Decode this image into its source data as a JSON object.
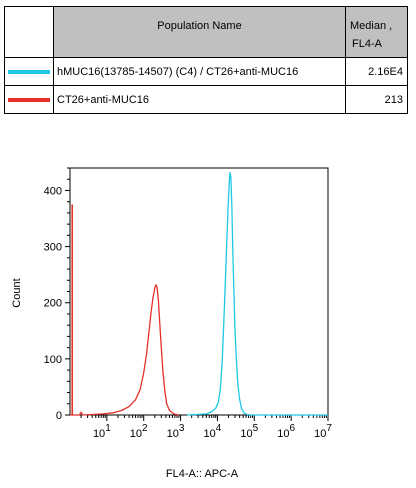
{
  "legend": {
    "header_population": "Population Name",
    "header_median_line1": "Median ,",
    "header_median_line2": "FL4-A",
    "rows": [
      {
        "name": "hMUC16(13785-14507) (C4) / CT26+anti-MUC16",
        "median": "2.16E4",
        "color": "#1fc8e8"
      },
      {
        "name": "CT26+anti-MUC16",
        "median": "213",
        "color": "#e8302a"
      }
    ]
  },
  "chart_data": {
    "type": "line",
    "xlabel": "FL4-A:: APC-A",
    "ylabel": "Count",
    "xscale": "log",
    "xlim": [
      1,
      10000000
    ],
    "ylim": [
      0,
      440
    ],
    "yticks": [
      0,
      100,
      200,
      300,
      400
    ],
    "xticks": [
      {
        "value": 10,
        "base": "10",
        "exp": "1"
      },
      {
        "value": 100,
        "base": "10",
        "exp": "2"
      },
      {
        "value": 1000,
        "base": "10",
        "exp": "3"
      },
      {
        "value": 10000,
        "base": "10",
        "exp": "4"
      },
      {
        "value": 100000,
        "base": "10",
        "exp": "5"
      },
      {
        "value": 1000000,
        "base": "10",
        "exp": "6"
      },
      {
        "value": 10000000,
        "base": "10",
        "exp": "7"
      }
    ],
    "series": [
      {
        "name": "hMUC16(13785-14507) (C4) / CT26+anti-MUC16",
        "color": "#1fc8e8",
        "points": [
          [
            1500,
            0
          ],
          [
            3000,
            1
          ],
          [
            5000,
            2
          ],
          [
            7000,
            6
          ],
          [
            9000,
            12
          ],
          [
            10500,
            22
          ],
          [
            12000,
            45
          ],
          [
            13500,
            95
          ],
          [
            15000,
            170
          ],
          [
            16500,
            240
          ],
          [
            18000,
            310
          ],
          [
            19500,
            370
          ],
          [
            21000,
            415
          ],
          [
            22000,
            432
          ],
          [
            23000,
            425
          ],
          [
            24500,
            375
          ],
          [
            26000,
            300
          ],
          [
            28000,
            220
          ],
          [
            30000,
            150
          ],
          [
            33000,
            95
          ],
          [
            36000,
            55
          ],
          [
            40000,
            28
          ],
          [
            45000,
            12
          ],
          [
            52000,
            4
          ],
          [
            62000,
            1
          ],
          [
            80000,
            0
          ],
          [
            10000000,
            0
          ]
        ]
      },
      {
        "name": "CT26+anti-MUC16",
        "color": "#e8302a",
        "points": [
          [
            1,
            0
          ],
          [
            1.8,
            0
          ],
          [
            2,
            5
          ],
          [
            2.2,
            0
          ],
          [
            8,
            2
          ],
          [
            15,
            4
          ],
          [
            25,
            8
          ],
          [
            40,
            15
          ],
          [
            60,
            27
          ],
          [
            80,
            45
          ],
          [
            100,
            75
          ],
          [
            120,
            110
          ],
          [
            140,
            150
          ],
          [
            160,
            185
          ],
          [
            180,
            210
          ],
          [
            200,
            226
          ],
          [
            215,
            232
          ],
          [
            230,
            228
          ],
          [
            250,
            205
          ],
          [
            270,
            168
          ],
          [
            300,
            120
          ],
          [
            330,
            80
          ],
          [
            370,
            45
          ],
          [
            420,
            20
          ],
          [
            500,
            8
          ],
          [
            650,
            2
          ],
          [
            900,
            0
          ]
        ]
      }
    ],
    "red_spike": {
      "x": 1.15,
      "y": 375
    }
  }
}
